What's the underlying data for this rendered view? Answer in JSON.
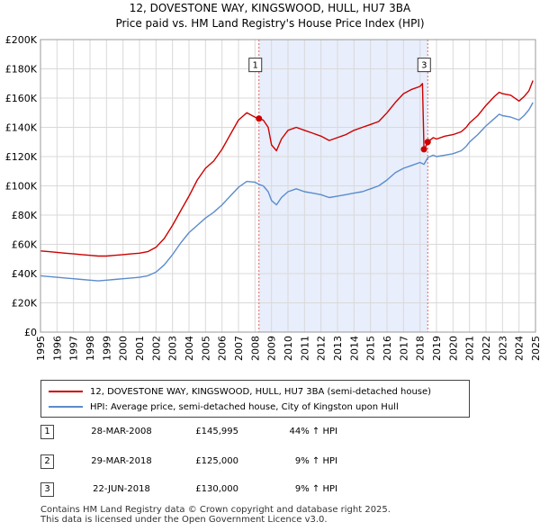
{
  "title_line1": "12, DOVESTONE WAY, KINGSWOOD, HULL, HU7 3BA",
  "title_line2": "Price paid vs. HM Land Registry's House Price Index (HPI)",
  "colors": {
    "price_line": "#cc0000",
    "hpi_line": "#5b8ccc",
    "shade": "#e8eefb",
    "vline": "#dd6666",
    "grid": "#d9d9d9"
  },
  "chart_data": {
    "type": "line",
    "xlim": [
      1995,
      2025
    ],
    "ylim": [
      0,
      200000
    ],
    "x_ticks": [
      "1995",
      "1996",
      "1997",
      "1998",
      "1999",
      "2000",
      "2001",
      "2002",
      "2003",
      "2004",
      "2005",
      "2006",
      "2007",
      "2008",
      "2009",
      "2010",
      "2011",
      "2012",
      "2013",
      "2014",
      "2015",
      "2016",
      "2017",
      "2018",
      "2019",
      "2020",
      "2021",
      "2022",
      "2023",
      "2024",
      "2025"
    ],
    "y_ticks": [
      {
        "value": 0,
        "label": "£0"
      },
      {
        "value": 20000,
        "label": "£20K"
      },
      {
        "value": 40000,
        "label": "£40K"
      },
      {
        "value": 60000,
        "label": "£60K"
      },
      {
        "value": 80000,
        "label": "£80K"
      },
      {
        "value": 100000,
        "label": "£100K"
      },
      {
        "value": 120000,
        "label": "£120K"
      },
      {
        "value": 140000,
        "label": "£140K"
      },
      {
        "value": 160000,
        "label": "£160K"
      },
      {
        "value": 180000,
        "label": "£180K"
      },
      {
        "value": 200000,
        "label": "£200K"
      }
    ],
    "shaded_range": [
      2008.24,
      2018.47
    ],
    "series": [
      {
        "name": "12, DOVESTONE WAY, KINGSWOOD, HULL, HU7 3BA (semi-detached house)",
        "color": "#cc0000",
        "points": [
          [
            1995.0,
            55500
          ],
          [
            1995.5,
            55000
          ],
          [
            1996.0,
            54500
          ],
          [
            1996.5,
            54000
          ],
          [
            1997.0,
            53500
          ],
          [
            1997.5,
            53000
          ],
          [
            1998.0,
            52500
          ],
          [
            1998.5,
            52000
          ],
          [
            1999.0,
            52000
          ],
          [
            1999.5,
            52500
          ],
          [
            2000.0,
            53000
          ],
          [
            2000.5,
            53500
          ],
          [
            2001.0,
            54000
          ],
          [
            2001.5,
            55000
          ],
          [
            2002.0,
            58000
          ],
          [
            2002.5,
            64000
          ],
          [
            2003.0,
            73000
          ],
          [
            2003.5,
            83000
          ],
          [
            2004.0,
            93000
          ],
          [
            2004.5,
            104000
          ],
          [
            2005.0,
            112000
          ],
          [
            2005.5,
            117000
          ],
          [
            2006.0,
            125000
          ],
          [
            2006.5,
            135000
          ],
          [
            2007.0,
            145000
          ],
          [
            2007.5,
            150000
          ],
          [
            2008.0,
            147000
          ],
          [
            2008.24,
            145995
          ],
          [
            2008.5,
            145000
          ],
          [
            2008.8,
            140000
          ],
          [
            2009.0,
            128000
          ],
          [
            2009.3,
            124000
          ],
          [
            2009.6,
            132000
          ],
          [
            2010.0,
            138000
          ],
          [
            2010.5,
            140000
          ],
          [
            2011.0,
            138000
          ],
          [
            2011.5,
            136000
          ],
          [
            2012.0,
            134000
          ],
          [
            2012.5,
            131000
          ],
          [
            2013.0,
            133000
          ],
          [
            2013.5,
            135000
          ],
          [
            2014.0,
            138000
          ],
          [
            2014.5,
            140000
          ],
          [
            2015.0,
            142000
          ],
          [
            2015.5,
            144000
          ],
          [
            2016.0,
            150000
          ],
          [
            2016.5,
            157000
          ],
          [
            2017.0,
            163000
          ],
          [
            2017.5,
            166000
          ],
          [
            2018.0,
            168000
          ],
          [
            2018.15,
            170000
          ],
          [
            2018.24,
            125000
          ],
          [
            2018.35,
            127000
          ],
          [
            2018.47,
            130000
          ],
          [
            2018.8,
            133000
          ],
          [
            2019.0,
            132000
          ],
          [
            2019.5,
            134000
          ],
          [
            2020.0,
            135000
          ],
          [
            2020.5,
            137000
          ],
          [
            2020.8,
            140000
          ],
          [
            2021.0,
            143000
          ],
          [
            2021.5,
            148000
          ],
          [
            2022.0,
            155000
          ],
          [
            2022.5,
            161000
          ],
          [
            2022.8,
            164000
          ],
          [
            2023.0,
            163000
          ],
          [
            2023.5,
            162000
          ],
          [
            2024.0,
            158000
          ],
          [
            2024.3,
            161000
          ],
          [
            2024.6,
            165000
          ],
          [
            2024.85,
            172000
          ]
        ]
      },
      {
        "name": "HPI: Average price, semi-detached house, City of Kingston upon Hull",
        "color": "#5b8ccc",
        "points": [
          [
            1995.0,
            38500
          ],
          [
            1995.5,
            38000
          ],
          [
            1996.0,
            37500
          ],
          [
            1996.5,
            37000
          ],
          [
            1997.0,
            36500
          ],
          [
            1997.5,
            36000
          ],
          [
            1998.0,
            35500
          ],
          [
            1998.5,
            35000
          ],
          [
            1999.0,
            35500
          ],
          [
            1999.5,
            36000
          ],
          [
            2000.0,
            36500
          ],
          [
            2000.5,
            37000
          ],
          [
            2001.0,
            37500
          ],
          [
            2001.5,
            38500
          ],
          [
            2002.0,
            41000
          ],
          [
            2002.5,
            46000
          ],
          [
            2003.0,
            53000
          ],
          [
            2003.5,
            61000
          ],
          [
            2004.0,
            68000
          ],
          [
            2004.5,
            73000
          ],
          [
            2005.0,
            78000
          ],
          [
            2005.5,
            82000
          ],
          [
            2006.0,
            87000
          ],
          [
            2006.5,
            93000
          ],
          [
            2007.0,
            99000
          ],
          [
            2007.5,
            103000
          ],
          [
            2008.0,
            102500
          ],
          [
            2008.24,
            101000
          ],
          [
            2008.5,
            100000
          ],
          [
            2008.8,
            96000
          ],
          [
            2009.0,
            90000
          ],
          [
            2009.3,
            87000
          ],
          [
            2009.6,
            92000
          ],
          [
            2010.0,
            96000
          ],
          [
            2010.5,
            98000
          ],
          [
            2011.0,
            96000
          ],
          [
            2011.5,
            95000
          ],
          [
            2012.0,
            94000
          ],
          [
            2012.5,
            92000
          ],
          [
            2013.0,
            93000
          ],
          [
            2013.5,
            94000
          ],
          [
            2014.0,
            95000
          ],
          [
            2014.5,
            96000
          ],
          [
            2015.0,
            98000
          ],
          [
            2015.5,
            100000
          ],
          [
            2016.0,
            104000
          ],
          [
            2016.5,
            109000
          ],
          [
            2017.0,
            112000
          ],
          [
            2017.5,
            114000
          ],
          [
            2018.0,
            116000
          ],
          [
            2018.24,
            114700
          ],
          [
            2018.47,
            119300
          ],
          [
            2018.8,
            121000
          ],
          [
            2019.0,
            120000
          ],
          [
            2019.5,
            121000
          ],
          [
            2020.0,
            122000
          ],
          [
            2020.5,
            124000
          ],
          [
            2020.8,
            127000
          ],
          [
            2021.0,
            130000
          ],
          [
            2021.5,
            135000
          ],
          [
            2022.0,
            141000
          ],
          [
            2022.5,
            146000
          ],
          [
            2022.8,
            149000
          ],
          [
            2023.0,
            148000
          ],
          [
            2023.5,
            147000
          ],
          [
            2024.0,
            145000
          ],
          [
            2024.3,
            148000
          ],
          [
            2024.6,
            152000
          ],
          [
            2024.85,
            157000
          ]
        ]
      }
    ],
    "markers": [
      {
        "label": "1",
        "x": 2008.24,
        "y": 145995
      },
      {
        "label": "2",
        "x": 2018.24,
        "y": 125000
      },
      {
        "label": "3",
        "x": 2018.47,
        "y": 130000
      }
    ],
    "marker_boxes": [
      {
        "label": "1",
        "x": 2008.24,
        "y": 183000
      },
      {
        "label": "3",
        "x": 2018.47,
        "y": 183000
      }
    ]
  },
  "legend": {
    "price_label": "12, DOVESTONE WAY, KINGSWOOD, HULL, HU7 3BA (semi-detached house)",
    "hpi_label": "HPI: Average price, semi-detached house, City of Kingston upon Hull"
  },
  "transactions": [
    {
      "num": "1",
      "date": "28-MAR-2008",
      "price": "£145,995",
      "hpi": "44% ↑ HPI"
    },
    {
      "num": "2",
      "date": "29-MAR-2018",
      "price": "£125,000",
      "hpi": "9% ↑ HPI"
    },
    {
      "num": "3",
      "date": "22-JUN-2018",
      "price": "£130,000",
      "hpi": "9% ↑ HPI"
    }
  ],
  "footer": {
    "line1": "Contains HM Land Registry data © Crown copyright and database right 2025.",
    "line2": "This data is licensed under the Open Government Licence v3.0."
  }
}
